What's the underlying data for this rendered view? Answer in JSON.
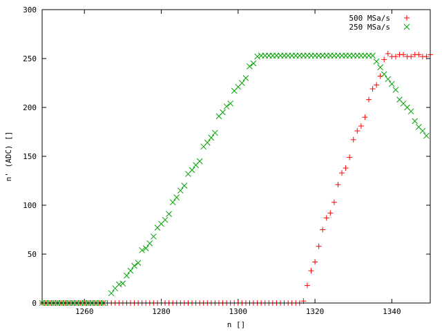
{
  "chart_data": {
    "type": "scatter",
    "title": "",
    "xlabel": "n []",
    "ylabel": "n' (ADC) []",
    "xlim": [
      1249,
      1350
    ],
    "ylim": [
      0,
      300
    ],
    "xticks": [
      1260,
      1280,
      1300,
      1320,
      1340
    ],
    "yticks": [
      0,
      50,
      100,
      150,
      200,
      250,
      300
    ],
    "legend": {
      "position": "top-right"
    },
    "grid": false,
    "series": [
      {
        "name": "500 MSa/s",
        "color": "#ff0000",
        "marker": "plus",
        "points": [
          [
            1249,
            0
          ],
          [
            1250,
            0
          ],
          [
            1251,
            0
          ],
          [
            1252,
            0
          ],
          [
            1253,
            0
          ],
          [
            1254,
            0
          ],
          [
            1255,
            0
          ],
          [
            1256,
            0
          ],
          [
            1257,
            0
          ],
          [
            1258,
            0
          ],
          [
            1259,
            0
          ],
          [
            1260,
            0
          ],
          [
            1261,
            0
          ],
          [
            1262,
            0
          ],
          [
            1263,
            0
          ],
          [
            1264,
            0
          ],
          [
            1265,
            0
          ],
          [
            1266,
            0
          ],
          [
            1267,
            0
          ],
          [
            1268,
            0
          ],
          [
            1269,
            0
          ],
          [
            1270,
            0
          ],
          [
            1271,
            0
          ],
          [
            1272,
            0
          ],
          [
            1273,
            0
          ],
          [
            1274,
            0
          ],
          [
            1275,
            0
          ],
          [
            1276,
            0
          ],
          [
            1277,
            0
          ],
          [
            1278,
            0
          ],
          [
            1279,
            0
          ],
          [
            1280,
            0
          ],
          [
            1281,
            0
          ],
          [
            1282,
            0
          ],
          [
            1283,
            0
          ],
          [
            1284,
            0
          ],
          [
            1285,
            0
          ],
          [
            1286,
            0
          ],
          [
            1287,
            0
          ],
          [
            1288,
            0
          ],
          [
            1289,
            0
          ],
          [
            1290,
            0
          ],
          [
            1291,
            0
          ],
          [
            1292,
            0
          ],
          [
            1293,
            0
          ],
          [
            1294,
            0
          ],
          [
            1295,
            0
          ],
          [
            1296,
            0
          ],
          [
            1297,
            0
          ],
          [
            1298,
            0
          ],
          [
            1299,
            0
          ],
          [
            1300,
            0
          ],
          [
            1301,
            0
          ],
          [
            1302,
            0
          ],
          [
            1303,
            0
          ],
          [
            1304,
            0
          ],
          [
            1305,
            0
          ],
          [
            1306,
            0
          ],
          [
            1307,
            0
          ],
          [
            1308,
            0
          ],
          [
            1309,
            0
          ],
          [
            1310,
            0
          ],
          [
            1311,
            0
          ],
          [
            1312,
            0
          ],
          [
            1313,
            0
          ],
          [
            1314,
            0
          ],
          [
            1315,
            0
          ],
          [
            1316,
            0
          ],
          [
            1317,
            2
          ],
          [
            1318,
            18
          ],
          [
            1319,
            33
          ],
          [
            1320,
            42
          ],
          [
            1321,
            58
          ],
          [
            1322,
            75
          ],
          [
            1323,
            87
          ],
          [
            1324,
            92
          ],
          [
            1325,
            103
          ],
          [
            1326,
            121
          ],
          [
            1327,
            133
          ],
          [
            1328,
            138
          ],
          [
            1329,
            149
          ],
          [
            1330,
            167
          ],
          [
            1331,
            176
          ],
          [
            1332,
            181
          ],
          [
            1333,
            190
          ],
          [
            1334,
            208
          ],
          [
            1335,
            219
          ],
          [
            1336,
            223
          ],
          [
            1337,
            232
          ],
          [
            1338,
            249
          ],
          [
            1339,
            255
          ],
          [
            1340,
            252
          ],
          [
            1341,
            252
          ],
          [
            1342,
            254
          ],
          [
            1343,
            254
          ],
          [
            1344,
            252
          ],
          [
            1345,
            252
          ],
          [
            1346,
            254
          ],
          [
            1347,
            254
          ],
          [
            1348,
            252
          ],
          [
            1349,
            252
          ],
          [
            1350,
            254
          ]
        ]
      },
      {
        "name": "250 MSa/s",
        "color": "#00a000",
        "marker": "cross",
        "points": [
          [
            1249,
            0
          ],
          [
            1250,
            0
          ],
          [
            1251,
            0
          ],
          [
            1252,
            0
          ],
          [
            1253,
            0
          ],
          [
            1254,
            0
          ],
          [
            1255,
            0
          ],
          [
            1256,
            0
          ],
          [
            1257,
            0
          ],
          [
            1258,
            0
          ],
          [
            1259,
            0
          ],
          [
            1260,
            0
          ],
          [
            1261,
            0
          ],
          [
            1262,
            0
          ],
          [
            1263,
            0
          ],
          [
            1264,
            0
          ],
          [
            1265,
            0
          ],
          [
            1267,
            10
          ],
          [
            1268,
            15
          ],
          [
            1269,
            19
          ],
          [
            1270,
            20
          ],
          [
            1271,
            28
          ],
          [
            1272,
            33
          ],
          [
            1273,
            38
          ],
          [
            1274,
            41
          ],
          [
            1275,
            54
          ],
          [
            1276,
            56
          ],
          [
            1277,
            61
          ],
          [
            1278,
            68
          ],
          [
            1279,
            77
          ],
          [
            1280,
            81
          ],
          [
            1281,
            85
          ],
          [
            1282,
            91
          ],
          [
            1283,
            103
          ],
          [
            1284,
            108
          ],
          [
            1285,
            115
          ],
          [
            1286,
            120
          ],
          [
            1287,
            132
          ],
          [
            1288,
            136
          ],
          [
            1289,
            141
          ],
          [
            1290,
            145
          ],
          [
            1291,
            160
          ],
          [
            1292,
            164
          ],
          [
            1293,
            169
          ],
          [
            1294,
            174
          ],
          [
            1295,
            191
          ],
          [
            1296,
            195
          ],
          [
            1297,
            201
          ],
          [
            1298,
            204
          ],
          [
            1299,
            217
          ],
          [
            1300,
            221
          ],
          [
            1301,
            225
          ],
          [
            1302,
            230
          ],
          [
            1303,
            242
          ],
          [
            1304,
            245
          ],
          [
            1305,
            252
          ],
          [
            1306,
            253
          ],
          [
            1307,
            253
          ],
          [
            1308,
            253
          ],
          [
            1309,
            253
          ],
          [
            1310,
            253
          ],
          [
            1311,
            253
          ],
          [
            1312,
            253
          ],
          [
            1313,
            253
          ],
          [
            1314,
            253
          ],
          [
            1315,
            253
          ],
          [
            1316,
            253
          ],
          [
            1317,
            253
          ],
          [
            1318,
            253
          ],
          [
            1319,
            253
          ],
          [
            1320,
            253
          ],
          [
            1321,
            253
          ],
          [
            1322,
            253
          ],
          [
            1323,
            253
          ],
          [
            1324,
            253
          ],
          [
            1325,
            253
          ],
          [
            1326,
            253
          ],
          [
            1327,
            253
          ],
          [
            1328,
            253
          ],
          [
            1329,
            253
          ],
          [
            1330,
            253
          ],
          [
            1331,
            253
          ],
          [
            1332,
            253
          ],
          [
            1333,
            253
          ],
          [
            1334,
            253
          ],
          [
            1335,
            253
          ],
          [
            1336,
            247
          ],
          [
            1337,
            241
          ],
          [
            1338,
            234
          ],
          [
            1339,
            229
          ],
          [
            1340,
            224
          ],
          [
            1341,
            218
          ],
          [
            1342,
            208
          ],
          [
            1343,
            204
          ],
          [
            1344,
            200
          ],
          [
            1345,
            196
          ],
          [
            1346,
            186
          ],
          [
            1347,
            180
          ],
          [
            1348,
            176
          ],
          [
            1349,
            171
          ]
        ]
      }
    ]
  }
}
